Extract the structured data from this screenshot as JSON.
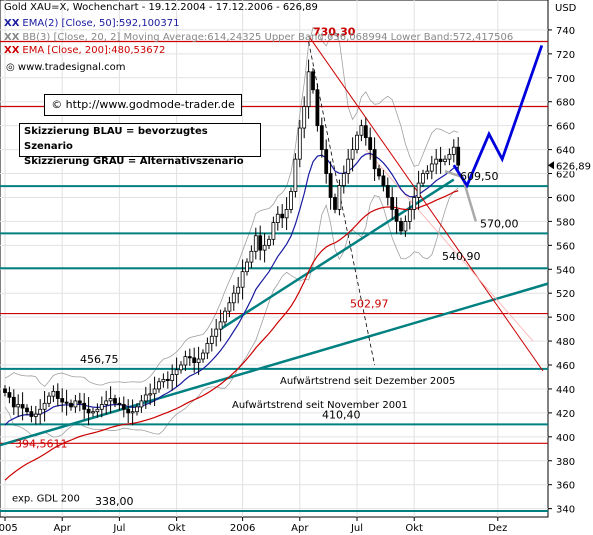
{
  "header": {
    "title": "Gold XAU=X, Wochenchart - 19.12.2004 - 17.12.2006 - 626,89",
    "ema50": "EMA(2) [Close, 50]:592,100371",
    "bollinger": "BB(3) [Close, 20, 2] Moving Average:614,24325 Upper Band:656,068994 Lower Band:572,417506",
    "ema200": "EMA [Close, 200]:480,53672",
    "source": "www.tradesignal.com",
    "x_glyph": "XX",
    "copyright_url": "© http://www.godmode-trader.de"
  },
  "legend": {
    "blue": "Skizzierung BLAU = bevorzugtes Szenario",
    "gray": "Skizzierung GRAU = Alternativszenario"
  },
  "colors": {
    "candle": "#000000",
    "ema50": "#1a1aa0",
    "ema200": "#cc0000",
    "bollinger": "#a0a0a0",
    "trendline": "#008080",
    "support": "#008080",
    "resistance_red": "#cc0000",
    "scenario_blue": "#0000dd",
    "scenario_gray": "#aaaaaa"
  },
  "chart_data": {
    "type": "candlestick",
    "currency": "USD",
    "ylim": [
      333,
      765
    ],
    "yticks": [
      340,
      360,
      380,
      400,
      420,
      440,
      460,
      480,
      500,
      520,
      540,
      560,
      580,
      600,
      620,
      640,
      660,
      680,
      700,
      720,
      740
    ],
    "x_labels": [
      "2005",
      "Apr",
      "Jul",
      "Okt",
      "2006",
      "Apr",
      "Jul",
      "Okt",
      "Dez"
    ],
    "x_label_weeks": [
      0,
      13,
      26,
      39,
      54,
      67,
      80,
      93,
      112
    ],
    "weeks_shown": 104,
    "last_price": "626,89",
    "closes": [
      437,
      433,
      425,
      427,
      424,
      421,
      417,
      419,
      423,
      428,
      434,
      438,
      432,
      429,
      428,
      425,
      430,
      428,
      423,
      420,
      421,
      423,
      427,
      430,
      432,
      428,
      427,
      423,
      420,
      421,
      425,
      430,
      435,
      436,
      440,
      446,
      448,
      447,
      452,
      456,
      460,
      467,
      466,
      462,
      465,
      470,
      478,
      484,
      490,
      496,
      505,
      512,
      520,
      525,
      538,
      546,
      555,
      568,
      556,
      560,
      565,
      579,
      586,
      583,
      590,
      605,
      632,
      658,
      676,
      705,
      690,
      660,
      640,
      620,
      600,
      590,
      610,
      620,
      632,
      640,
      652,
      660,
      650,
      640,
      624,
      618,
      610,
      600,
      590,
      580,
      572,
      580,
      590,
      600,
      612,
      620,
      622,
      628,
      632,
      630,
      632,
      636,
      642,
      627
    ],
    "horizontal_lines": [
      {
        "label": "730,30",
        "value": 730.3,
        "color": "red"
      },
      {
        "label": "",
        "value": 676,
        "color": "red"
      },
      {
        "label": "609,50",
        "value": 609.5,
        "color": "teal"
      },
      {
        "label": "570,00",
        "value": 570,
        "color": "teal"
      },
      {
        "label": "540,90",
        "value": 540.9,
        "color": "teal"
      },
      {
        "label": "502,97",
        "value": 502.97,
        "color": "red"
      },
      {
        "label": "456,75",
        "value": 456.75,
        "color": "teal"
      },
      {
        "label": "410,40",
        "value": 410.4,
        "color": "teal"
      },
      {
        "label": "394,5611",
        "value": 394.56,
        "color": "red"
      },
      {
        "label": "338,00",
        "value": 338,
        "color": "teal"
      }
    ],
    "trend_labels": {
      "dec2005": "Aufwärtstrend seit Dezember 2005",
      "nov2001": "Aufwärtstrend seit November 2001",
      "gdl200": "exp. GDL 200"
    },
    "scenario_blue": [
      [
        102,
        627
      ],
      [
        105,
        610
      ],
      [
        110,
        653
      ],
      [
        113,
        632
      ],
      [
        122,
        727
      ]
    ],
    "scenario_gray": [
      [
        100,
        622
      ],
      [
        104,
        617
      ],
      [
        107,
        580
      ]
    ],
    "price_tag": "626,89"
  }
}
